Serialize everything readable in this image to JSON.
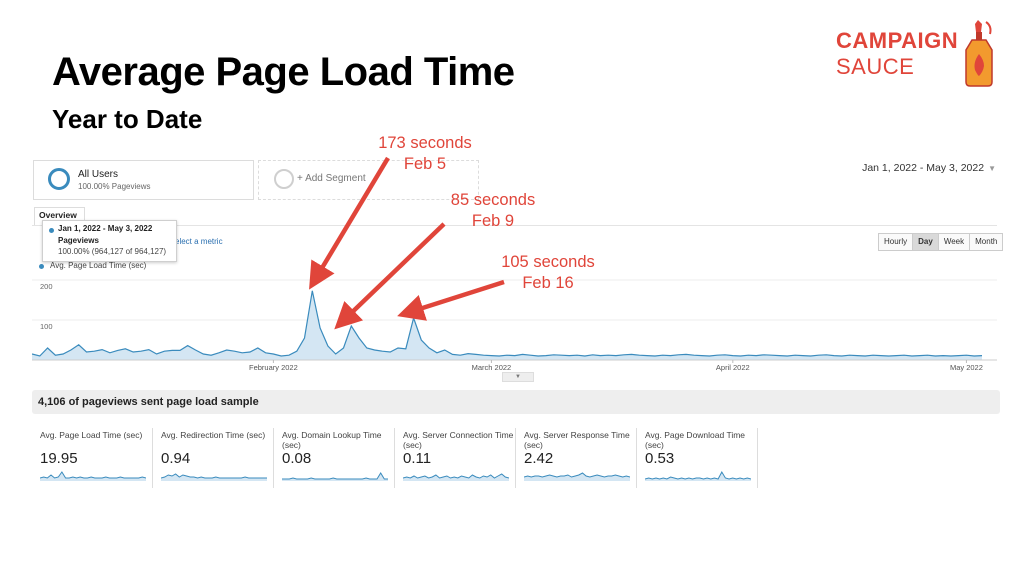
{
  "slide": {
    "title": "Average Page Load Time",
    "subtitle": "Year to Date"
  },
  "logo": {
    "line1": "CAMPAIGN",
    "line2": "SAUCE",
    "color": "#e0453a"
  },
  "ga": {
    "segments": [
      {
        "name": "All Users",
        "sub": "100.00% Pageviews"
      },
      {
        "name": "+ Add Segment"
      }
    ],
    "date_range": "Jan 1, 2022 - May 3, 2022",
    "tab": "Overview",
    "tooltip": {
      "date": "Jan 1, 2022 - May 3, 2022",
      "metric": "Pageviews",
      "value": "100.00% (964,127 of 964,127)"
    },
    "select_metric": "elect a metric",
    "metric_legend": "Avg. Page Load Time (sec)",
    "granularity": [
      "Hourly",
      "Day",
      "Week",
      "Month"
    ],
    "granularity_active": "Day",
    "summary": "4,106 of pageviews sent page load sample",
    "accent_color": "#3a8bbd",
    "sparklines": [
      {
        "label": "Avg. Page Load Time (sec)",
        "value": "19.95",
        "icon": "sparkline"
      },
      {
        "label": "Avg. Redirection Time (sec)",
        "value": "0.94",
        "icon": "sparkline"
      },
      {
        "label": "Avg. Domain Lookup Time (sec)",
        "value": "0.08",
        "icon": "sparkline"
      },
      {
        "label": "Avg. Server Connection Time (sec)",
        "value": "0.11",
        "icon": "sparkline"
      },
      {
        "label": "Avg. Server Response Time (sec)",
        "value": "2.42",
        "icon": "sparkline"
      },
      {
        "label": "Avg. Page Download Time (sec)",
        "value": "0.53",
        "icon": "sparkline"
      }
    ]
  },
  "annotations": [
    {
      "line1": "173 seconds",
      "line2": "Feb 5"
    },
    {
      "line1": "85 seconds",
      "line2": "Feb 9"
    },
    {
      "line1": "105 seconds",
      "line2": "Feb 16"
    }
  ],
  "chart_data": {
    "type": "area",
    "title": "",
    "ylabel": "Avg. Page Load Time (sec)",
    "ylim": [
      0,
      220
    ],
    "y_ticks": [
      "200",
      "100"
    ],
    "x_tick_labels": [
      "February 2022",
      "March 2022",
      "April 2022",
      "May 2022"
    ],
    "x_ticks_day_index": [
      31,
      59,
      90,
      120
    ],
    "series": [
      {
        "name": "Avg. Page Load Time (sec)",
        "color": "#3a8bbd",
        "values": [
          15,
          10,
          30,
          12,
          15,
          25,
          38,
          20,
          22,
          26,
          18,
          24,
          28,
          20,
          22,
          26,
          15,
          22,
          24,
          24,
          36,
          25,
          15,
          12,
          18,
          25,
          22,
          18,
          20,
          30,
          18,
          15,
          10,
          12,
          22,
          55,
          173,
          80,
          35,
          15,
          30,
          85,
          55,
          30,
          25,
          22,
          20,
          30,
          28,
          105,
          50,
          30,
          18,
          25,
          14,
          12,
          16,
          14,
          12,
          11,
          10,
          12,
          11,
          14,
          12,
          10,
          11,
          13,
          12,
          11,
          12,
          10,
          13,
          11,
          12,
          11,
          13,
          14,
          12,
          11,
          10,
          12,
          11,
          13,
          14,
          12,
          11,
          10,
          12,
          13,
          11,
          10,
          12,
          11,
          13,
          12,
          11,
          10,
          12,
          11,
          10,
          12,
          13,
          11,
          10,
          12,
          11,
          10,
          12,
          11,
          10,
          11,
          12,
          10,
          11,
          12,
          10,
          11,
          10,
          11,
          12,
          10,
          11
        ]
      }
    ]
  }
}
